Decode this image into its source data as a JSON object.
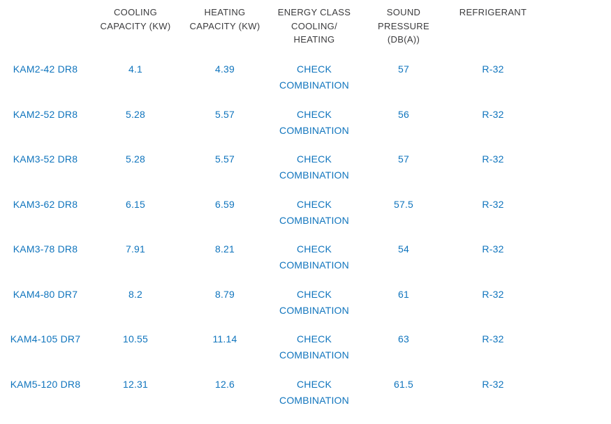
{
  "colors": {
    "accent_blue": "#0f74bd",
    "header_gray": "#3b3b3d",
    "background": "#ffffff"
  },
  "table": {
    "columns": [
      {
        "label": ""
      },
      {
        "label": "COOLING\nCAPACITY (KW)"
      },
      {
        "label": "HEATING\nCAPACITY (KW)"
      },
      {
        "label": "ENERGY CLASS\nCOOLING/\nHEATING"
      },
      {
        "label": "SOUND\nPRESSURE\n(DB(A))"
      },
      {
        "label": "REFRIGERANT"
      }
    ],
    "rows": [
      {
        "model": "KAM2-42 DR8",
        "cooling_kw": "4.1",
        "heating_kw": "4.39",
        "energy_class": "CHECK\nCOMBINATION",
        "sound_db": "57",
        "refrigerant": "R-32"
      },
      {
        "model": "KAM2-52 DR8",
        "cooling_kw": "5.28",
        "heating_kw": "5.57",
        "energy_class": "CHECK\nCOMBINATION",
        "sound_db": "56",
        "refrigerant": "R-32"
      },
      {
        "model": "KAM3-52 DR8",
        "cooling_kw": "5.28",
        "heating_kw": "5.57",
        "energy_class": "CHECK\nCOMBINATION",
        "sound_db": "57",
        "refrigerant": "R-32"
      },
      {
        "model": "KAM3-62 DR8",
        "cooling_kw": "6.15",
        "heating_kw": "6.59",
        "energy_class": "CHECK\nCOMBINATION",
        "sound_db": "57.5",
        "refrigerant": "R-32"
      },
      {
        "model": "KAM3-78 DR8",
        "cooling_kw": "7.91",
        "heating_kw": "8.21",
        "energy_class": "CHECK\nCOMBINATION",
        "sound_db": "54",
        "refrigerant": "R-32"
      },
      {
        "model": "KAM4-80 DR7",
        "cooling_kw": "8.2",
        "heating_kw": "8.79",
        "energy_class": "CHECK\nCOMBINATION",
        "sound_db": "61",
        "refrigerant": "R-32"
      },
      {
        "model": "KAM4-105 DR7",
        "cooling_kw": "10.55",
        "heating_kw": "11.14",
        "energy_class": "CHECK\nCOMBINATION",
        "sound_db": "63",
        "refrigerant": "R-32"
      },
      {
        "model": "KAM5-120 DR8",
        "cooling_kw": "12.31",
        "heating_kw": "12.6",
        "energy_class": "CHECK\nCOMBINATION",
        "sound_db": "61.5",
        "refrigerant": "R-32"
      }
    ]
  }
}
